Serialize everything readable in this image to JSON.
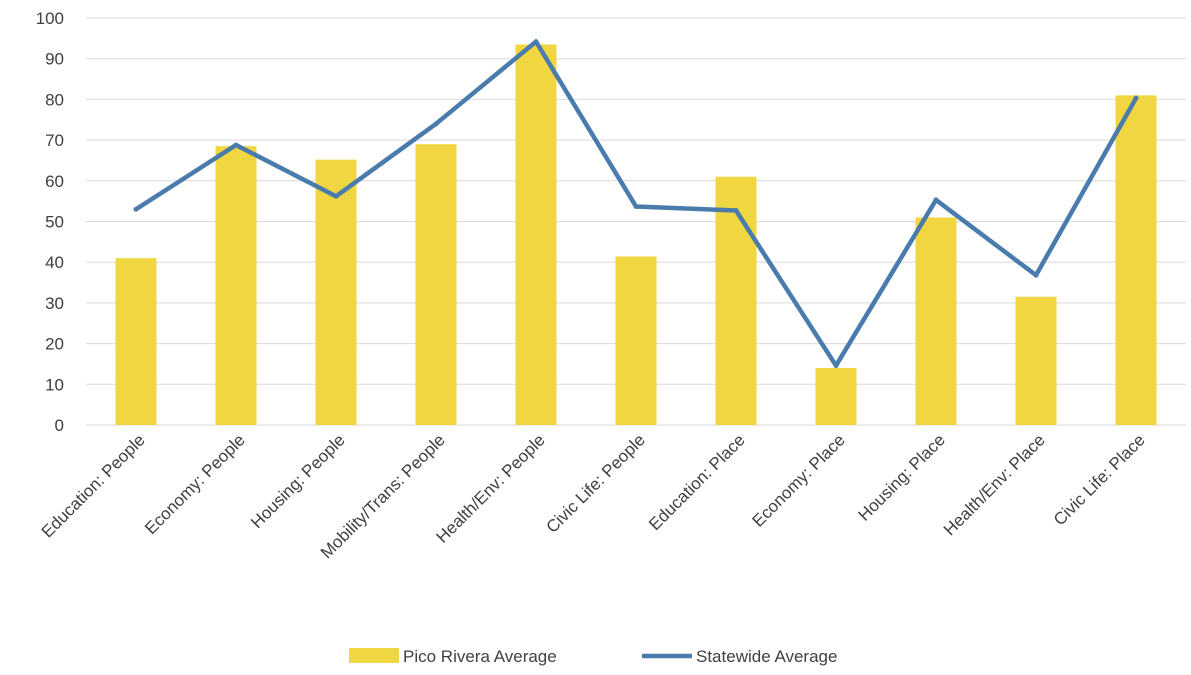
{
  "chart_data": {
    "type": "bar",
    "title": "",
    "xlabel": "",
    "ylabel": "",
    "ylim": [
      0,
      100
    ],
    "yticks": [
      0,
      10,
      20,
      30,
      40,
      50,
      60,
      70,
      80,
      90,
      100
    ],
    "grid": true,
    "legend_position": "bottom",
    "categories": [
      "Education: People",
      "Economy: People",
      "Housing: People",
      "Mobility/Trans: People",
      "Health/Env: People",
      "Civic Life: People",
      "Education: Place",
      "Economy: Place",
      "Housing: Place",
      "Health/Env: Place",
      "Civic Life: Place"
    ],
    "series": [
      {
        "name": "Pico Rivera Average",
        "kind": "bar",
        "color": "#f0d641",
        "values": [
          41,
          68.5,
          65.2,
          69,
          93.5,
          41.4,
          61,
          14,
          51,
          31.5,
          81
        ]
      },
      {
        "name": "Statewide Average",
        "kind": "line",
        "color": "#4a7bad",
        "values": [
          53,
          68.8,
          56.2,
          74,
          94.2,
          53.7,
          52.7,
          14.6,
          55.3,
          36.8,
          80.3
        ]
      }
    ]
  }
}
